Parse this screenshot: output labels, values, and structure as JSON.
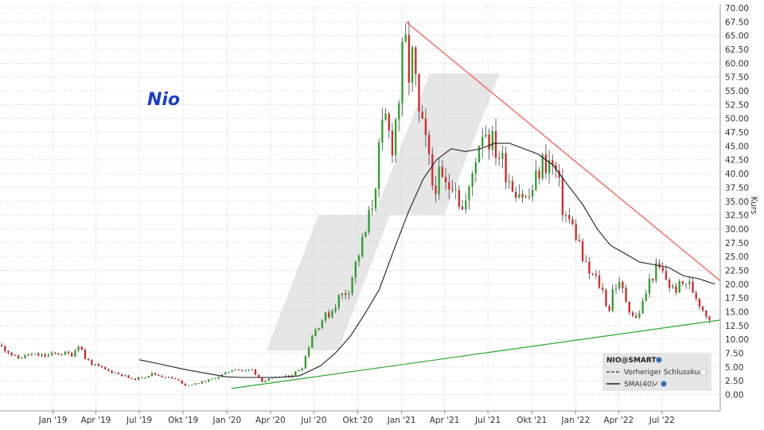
{
  "chart_data": {
    "type": "candlestick",
    "title": "Nio",
    "ylabel": "Kurs",
    "ylim": [
      0,
      70
    ],
    "y_ticks": [
      "0.00",
      "2.50",
      "5.00",
      "7.50",
      "10.00",
      "12.50",
      "15.00",
      "17.50",
      "20.00",
      "22.50",
      "25.00",
      "27.50",
      "30.00",
      "32.50",
      "35.00",
      "37.50",
      "40.00",
      "42.50",
      "45.00",
      "47.50",
      "50.00",
      "52.50",
      "55.00",
      "57.50",
      "60.00",
      "62.50",
      "65.00",
      "67.50",
      "70.00"
    ],
    "x_ticks": [
      {
        "label": "Jan '19",
        "date": "2019-01-01"
      },
      {
        "label": "Apr '19",
        "date": "2019-04-01"
      },
      {
        "label": "Jul '19",
        "date": "2019-07-01"
      },
      {
        "label": "Okt '19",
        "date": "2019-10-01"
      },
      {
        "label": "Jan '20",
        "date": "2020-01-01"
      },
      {
        "label": "Apr '20",
        "date": "2020-04-01"
      },
      {
        "label": "Jul '20",
        "date": "2020-07-01"
      },
      {
        "label": "Okt '20",
        "date": "2020-10-01"
      },
      {
        "label": "Jan '21",
        "date": "2021-01-01"
      },
      {
        "label": "Apr '21",
        "date": "2021-04-01"
      },
      {
        "label": "Jul '21",
        "date": "2021-07-01"
      },
      {
        "label": "Okt '21",
        "date": "2021-10-01"
      },
      {
        "label": "Jan '22",
        "date": "2022-01-01"
      },
      {
        "label": "Apr '22",
        "date": "2022-04-01"
      },
      {
        "label": "Jul '22",
        "date": "2022-07-01"
      }
    ],
    "xlim": [
      "2018-09-12",
      "2022-10-31"
    ],
    "grid": true,
    "legend": {
      "title": "NIO@SMART",
      "placement": "bottom-right",
      "entries": [
        {
          "name": "Vorheriger Schlusskurs",
          "style": "dashed",
          "color": "#333333"
        },
        {
          "name": "SMA(40)",
          "style": "solid",
          "color": "#222222"
        }
      ]
    },
    "colors": {
      "up": "#2ca02c",
      "down": "#d62728",
      "sma": "#222222",
      "resistance": "#ff4d4d",
      "support": "#2aa82a",
      "watermark": "#dcdcdc"
    },
    "close_path": [
      [
        "2018-09-12",
        9.0
      ],
      [
        "2018-10-01",
        8.0
      ],
      [
        "2018-10-20",
        6.5
      ],
      [
        "2018-11-15",
        7.2
      ],
      [
        "2018-12-20",
        7.0
      ],
      [
        "2019-01-15",
        7.5
      ],
      [
        "2019-02-15",
        7.3
      ],
      [
        "2019-03-01",
        9.5
      ],
      [
        "2019-03-10",
        6.8
      ],
      [
        "2019-04-01",
        5.3
      ],
      [
        "2019-05-01",
        4.3
      ],
      [
        "2019-06-01",
        3.5
      ],
      [
        "2019-06-20",
        2.7
      ],
      [
        "2019-07-15",
        3.2
      ],
      [
        "2019-08-01",
        3.8
      ],
      [
        "2019-08-20",
        3.3
      ],
      [
        "2019-09-10",
        3.0
      ],
      [
        "2019-09-25",
        2.5
      ],
      [
        "2019-10-10",
        1.6
      ],
      [
        "2019-11-01",
        2.0
      ],
      [
        "2019-12-01",
        2.7
      ],
      [
        "2020-01-01",
        3.8
      ],
      [
        "2020-01-20",
        4.8
      ],
      [
        "2020-02-10",
        4.2
      ],
      [
        "2020-02-25",
        4.6
      ],
      [
        "2020-03-18",
        2.4
      ],
      [
        "2020-04-10",
        3.0
      ],
      [
        "2020-05-15",
        3.3
      ],
      [
        "2020-06-10",
        5.0
      ],
      [
        "2020-07-01",
        10.8
      ],
      [
        "2020-07-20",
        13.5
      ],
      [
        "2020-08-10",
        15.0
      ],
      [
        "2020-08-25",
        17.5
      ],
      [
        "2020-09-15",
        19.0
      ],
      [
        "2020-10-01",
        24.0
      ],
      [
        "2020-10-20",
        29.0
      ],
      [
        "2020-11-05",
        35.0
      ],
      [
        "2020-11-20",
        45.0
      ],
      [
        "2020-12-01",
        50.0
      ],
      [
        "2020-12-15",
        45.0
      ],
      [
        "2021-01-01",
        55.0
      ],
      [
        "2021-01-10",
        65.0
      ],
      [
        "2021-01-20",
        58.0
      ],
      [
        "2021-01-28",
        61.0
      ],
      [
        "2021-02-10",
        50.0
      ],
      [
        "2021-02-25",
        45.0
      ],
      [
        "2021-03-10",
        38.0
      ],
      [
        "2021-03-25",
        39.0
      ],
      [
        "2021-04-10",
        37.0
      ],
      [
        "2021-04-25",
        40.0
      ],
      [
        "2021-05-10",
        33.0
      ],
      [
        "2021-05-25",
        36.0
      ],
      [
        "2021-06-10",
        44.0
      ],
      [
        "2021-06-25",
        49.0
      ],
      [
        "2021-07-10",
        46.0
      ],
      [
        "2021-07-25",
        44.0
      ],
      [
        "2021-08-10",
        41.0
      ],
      [
        "2021-08-25",
        38.0
      ],
      [
        "2021-09-10",
        37.0
      ],
      [
        "2021-09-25",
        35.0
      ],
      [
        "2021-10-10",
        38.0
      ],
      [
        "2021-10-25",
        42.0
      ],
      [
        "2021-11-10",
        42.0
      ],
      [
        "2021-11-25",
        40.0
      ],
      [
        "2021-12-10",
        33.0
      ],
      [
        "2021-12-25",
        31.0
      ],
      [
        "2022-01-10",
        28.0
      ],
      [
        "2022-01-20",
        24.0
      ],
      [
        "2022-02-01",
        22.0
      ],
      [
        "2022-02-15",
        21.0
      ],
      [
        "2022-03-01",
        19.0
      ],
      [
        "2022-03-15",
        15.0
      ],
      [
        "2022-03-25",
        20.0
      ],
      [
        "2022-04-10",
        19.5
      ],
      [
        "2022-04-25",
        16.0
      ],
      [
        "2022-05-10",
        13.5
      ],
      [
        "2022-05-25",
        16.5
      ],
      [
        "2022-06-10",
        21.0
      ],
      [
        "2022-06-25",
        23.0
      ],
      [
        "2022-07-10",
        21.5
      ],
      [
        "2022-07-25",
        19.0
      ],
      [
        "2022-08-10",
        19.5
      ],
      [
        "2022-08-25",
        20.5
      ],
      [
        "2022-09-10",
        18.5
      ],
      [
        "2022-09-25",
        16.0
      ],
      [
        "2022-10-10",
        14.0
      ]
    ],
    "sma40": [
      [
        "2019-07-01",
        6.3
      ],
      [
        "2019-08-15",
        5.5
      ],
      [
        "2019-10-01",
        4.6
      ],
      [
        "2019-11-15",
        3.9
      ],
      [
        "2020-01-01",
        3.2
      ],
      [
        "2020-02-01",
        3.1
      ],
      [
        "2020-03-15",
        3.1
      ],
      [
        "2020-04-15",
        3.1
      ],
      [
        "2020-06-01",
        3.4
      ],
      [
        "2020-07-15",
        5.2
      ],
      [
        "2020-08-15",
        7.5
      ],
      [
        "2020-09-15",
        10.5
      ],
      [
        "2020-10-15",
        14.5
      ],
      [
        "2020-11-15",
        19.0
      ],
      [
        "2020-12-15",
        26.0
      ],
      [
        "2021-01-15",
        33.0
      ],
      [
        "2021-02-15",
        39.0
      ],
      [
        "2021-03-15",
        42.5
      ],
      [
        "2021-04-15",
        44.5
      ],
      [
        "2021-05-15",
        44.0
      ],
      [
        "2021-06-15",
        44.5
      ],
      [
        "2021-07-15",
        45.5
      ],
      [
        "2021-08-15",
        45.5
      ],
      [
        "2021-09-15",
        44.5
      ],
      [
        "2021-10-15",
        43.5
      ],
      [
        "2021-11-15",
        41.5
      ],
      [
        "2021-12-15",
        38.0
      ],
      [
        "2022-01-15",
        34.5
      ],
      [
        "2022-02-15",
        30.0
      ],
      [
        "2022-03-15",
        27.0
      ],
      [
        "2022-04-15",
        25.5
      ],
      [
        "2022-05-15",
        24.0
      ],
      [
        "2022-06-15",
        23.5
      ],
      [
        "2022-07-15",
        23.0
      ],
      [
        "2022-08-15",
        21.5
      ],
      [
        "2022-09-15",
        21.0
      ],
      [
        "2022-10-20",
        20.0
      ]
    ],
    "trendlines": [
      {
        "name": "resistance",
        "from": [
          "2021-01-10",
          67.5
        ],
        "to": [
          "2022-10-31",
          20.6
        ]
      },
      {
        "name": "support",
        "from": [
          "2020-01-10",
          1.1
        ],
        "to": [
          "2022-10-31",
          13.5
        ]
      }
    ]
  }
}
